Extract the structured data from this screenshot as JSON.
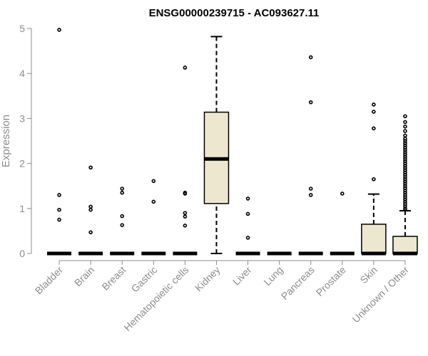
{
  "chart_data": {
    "type": "boxplot",
    "title": "ENSG00000239715 - AC093627.11",
    "xlabel": "",
    "ylabel": "Expression",
    "ylim": [
      0,
      5
    ],
    "yticks": [
      "0",
      "1",
      "2",
      "3",
      "4",
      "5"
    ],
    "grid": false,
    "box_fill": "#ede7cf",
    "categories": [
      "Bladder",
      "Brain",
      "Breast",
      "Gastric",
      "Hematopoietic cells",
      "Kidney",
      "Liver",
      "Lung",
      "Pancreas",
      "Prostate",
      "Skin",
      "Unknown / Other"
    ],
    "boxes": [
      {
        "min": 0,
        "q1": 0,
        "median": 0,
        "q3": 0,
        "max": 0,
        "outliers": [
          4.97,
          1.3,
          0.97,
          0.75
        ]
      },
      {
        "min": 0,
        "q1": 0,
        "median": 0,
        "q3": 0,
        "max": 0,
        "outliers": [
          1.91,
          1.04,
          0.97,
          0.47
        ]
      },
      {
        "min": 0,
        "q1": 0,
        "median": 0,
        "q3": 0,
        "max": 0,
        "outliers": [
          1.44,
          1.35,
          0.83,
          0.63
        ]
      },
      {
        "min": 0,
        "q1": 0,
        "median": 0,
        "q3": 0,
        "max": 0,
        "outliers": [
          1.61,
          1.15
        ]
      },
      {
        "min": 0,
        "q1": 0,
        "median": 0,
        "q3": 0,
        "max": 0,
        "outliers": [
          4.13,
          1.35,
          1.33,
          0.9,
          0.82,
          0.62
        ]
      },
      {
        "min": 0,
        "q1": 1.11,
        "median": 2.1,
        "q3": 3.14,
        "max": 4.82,
        "outliers": []
      },
      {
        "min": 0,
        "q1": 0,
        "median": 0,
        "q3": 0,
        "max": 0,
        "outliers": [
          1.22,
          0.88,
          0.35
        ]
      },
      {
        "min": 0,
        "q1": 0,
        "median": 0,
        "q3": 0,
        "max": 0,
        "outliers": []
      },
      {
        "min": 0,
        "q1": 0,
        "median": 0,
        "q3": 0,
        "max": 0,
        "outliers": [
          4.36,
          3.36,
          1.44,
          1.3
        ]
      },
      {
        "min": 0,
        "q1": 0,
        "median": 0,
        "q3": 0,
        "max": 0,
        "outliers": [
          1.33
        ]
      },
      {
        "min": 0,
        "q1": 0,
        "median": 0,
        "q3": 0.65,
        "max": 1.32,
        "outliers": [
          3.31,
          3.15,
          2.78,
          1.65
        ]
      },
      {
        "min": 0,
        "q1": 0,
        "median": 0,
        "q3": 0.38,
        "max": 0.95,
        "outliers": [
          3.05,
          2.92,
          2.82,
          2.72,
          2.62,
          2.55,
          2.5,
          2.45,
          2.4,
          2.35,
          2.3,
          2.25,
          2.2,
          2.15,
          2.1,
          2.05,
          2.0,
          1.95,
          1.9,
          1.85,
          1.8,
          1.75,
          1.7,
          1.65,
          1.6,
          1.55,
          1.5,
          1.45,
          1.4,
          1.35,
          1.3,
          1.25,
          1.2,
          1.15,
          1.1,
          1.05,
          1.0,
          0.98
        ]
      }
    ]
  }
}
